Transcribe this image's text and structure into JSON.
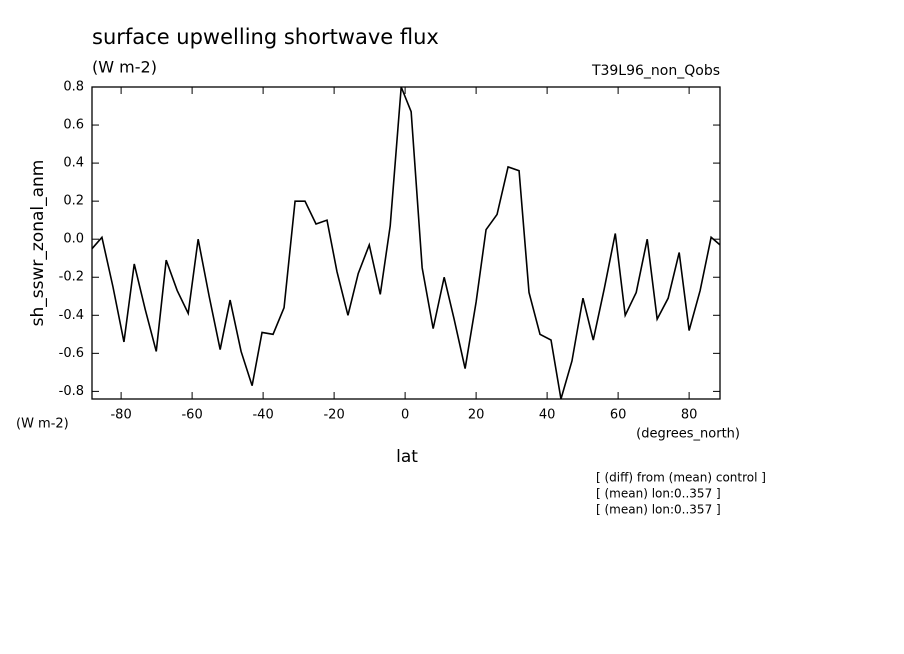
{
  "chart_data": {
    "type": "line",
    "title": "surface upwelling shortwave flux",
    "subtitle": "(W m-2)",
    "run_label": "T39L96_non_Qobs",
    "y_label": "sh_sswr_zonal_anm",
    "y_units": "(W m-2)",
    "x_label": "lat",
    "x_units": "(degrees_north)",
    "notes": [
      "[ (diff) from (mean) control ]",
      "[ (mean) lon:0..357 ]",
      "[ (mean) lon:0..357 ]"
    ],
    "x": [
      -88.2,
      -85.4,
      -82.3,
      -79.2,
      -76.3,
      -73.2,
      -70.1,
      -67.3,
      -64.2,
      -61.1,
      -58.3,
      -55.2,
      -52.1,
      -49.3,
      -46.2,
      -43.1,
      -40.3,
      -37.2,
      -34.1,
      -31.0,
      -28.2,
      -25.1,
      -22.0,
      -19.2,
      -16.1,
      -13.2,
      -10.1,
      -7.0,
      -4.2,
      -1.1,
      1.7,
      4.8,
      7.9,
      11.0,
      13.8,
      16.9,
      20.0,
      22.8,
      25.9,
      29.0,
      32.1,
      34.9,
      38.0,
      41.1,
      43.9,
      47.0,
      50.1,
      53.0,
      56.1,
      59.2,
      62.0,
      65.1,
      68.2,
      71.0,
      74.1,
      77.2,
      80.0,
      83.1,
      86.2,
      88.7
    ],
    "series": [
      {
        "color": "#000000",
        "values": [
          -0.05,
          0.01,
          -0.25,
          -0.54,
          -0.13,
          -0.37,
          -0.59,
          -0.11,
          -0.27,
          -0.39,
          0.0,
          -0.3,
          -0.58,
          -0.32,
          -0.59,
          -0.77,
          -0.49,
          -0.5,
          -0.36,
          0.2,
          0.2,
          0.08,
          0.1,
          -0.17,
          -0.4,
          -0.18,
          -0.03,
          -0.29,
          0.07,
          0.8,
          0.67,
          -0.15,
          -0.47,
          -0.2,
          -0.42,
          -0.68,
          -0.33,
          0.05,
          0.13,
          0.38,
          0.36,
          -0.28,
          -0.5,
          -0.53,
          -0.84,
          -0.64,
          -0.31,
          -0.53,
          -0.26,
          0.03,
          -0.4,
          -0.28,
          0.0,
          -0.42,
          -0.31,
          -0.07,
          -0.48,
          -0.27,
          0.01,
          -0.03
        ]
      }
    ],
    "xlim": [
      -88.2,
      88.7
    ],
    "ylim": [
      -0.84,
      0.8
    ],
    "xticks": [
      -80,
      -60,
      -40,
      -20,
      0,
      20,
      40,
      60,
      80
    ],
    "yticks": [
      0.8,
      0.6,
      0.4,
      0.2,
      {
        "value": 0,
        "label": "0.0"
      },
      -0.2,
      -0.4,
      -0.6,
      -0.8
    ]
  }
}
